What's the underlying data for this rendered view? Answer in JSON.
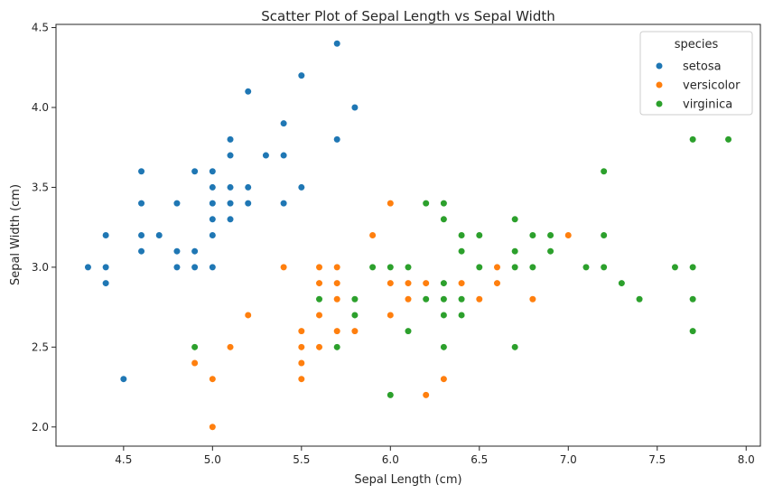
{
  "chart_data": {
    "type": "scatter",
    "title": "Scatter Plot of Sepal Length vs Sepal Width",
    "xlabel": "Sepal Length (cm)",
    "ylabel": "Sepal Width (cm)",
    "xlim": [
      4.12,
      8.08
    ],
    "ylim": [
      1.88,
      4.52
    ],
    "xticks": [
      4.5,
      5.0,
      5.5,
      6.0,
      6.5,
      7.0,
      7.5,
      8.0
    ],
    "xtick_labels": [
      "4.5",
      "5.0",
      "5.5",
      "6.0",
      "6.5",
      "7.0",
      "7.5",
      "8.0"
    ],
    "yticks": [
      2.0,
      2.5,
      3.0,
      3.5,
      4.0,
      4.5
    ],
    "ytick_labels": [
      "2.0",
      "2.5",
      "3.0",
      "3.5",
      "4.0",
      "4.5"
    ],
    "grid": false,
    "legend": {
      "title": "species",
      "placement": "top-right"
    },
    "series": [
      {
        "name": "setosa",
        "color": "#1f77b4",
        "x": [
          5.1,
          4.9,
          4.7,
          4.6,
          5.0,
          5.4,
          4.6,
          5.0,
          4.4,
          4.9,
          5.4,
          4.8,
          4.8,
          4.3,
          5.8,
          5.7,
          5.4,
          5.1,
          5.7,
          5.1,
          5.4,
          5.1,
          4.6,
          5.1,
          4.8,
          5.0,
          5.0,
          5.2,
          5.2,
          4.7,
          4.8,
          5.4,
          5.2,
          5.5,
          4.9,
          5.0,
          5.5,
          4.9,
          4.4,
          5.1,
          5.0,
          4.5,
          4.4,
          5.0,
          5.1,
          4.8,
          5.1,
          4.6,
          5.3,
          5.0
        ],
        "y": [
          3.5,
          3.0,
          3.2,
          3.1,
          3.6,
          3.9,
          3.4,
          3.4,
          2.9,
          3.1,
          3.7,
          3.4,
          3.0,
          3.0,
          4.0,
          4.4,
          3.9,
          3.5,
          3.8,
          3.8,
          3.4,
          3.7,
          3.6,
          3.3,
          3.4,
          3.0,
          3.4,
          3.5,
          3.4,
          3.2,
          3.1,
          3.4,
          4.1,
          4.2,
          3.1,
          3.2,
          3.5,
          3.6,
          3.0,
          3.4,
          3.5,
          2.3,
          3.2,
          3.5,
          3.8,
          3.0,
          3.8,
          3.2,
          3.7,
          3.3
        ]
      },
      {
        "name": "versicolor",
        "color": "#ff7f0e",
        "x": [
          7.0,
          6.4,
          6.9,
          5.5,
          6.5,
          5.7,
          6.3,
          4.9,
          6.6,
          5.2,
          5.0,
          5.9,
          6.0,
          6.1,
          5.6,
          6.7,
          5.6,
          5.8,
          6.2,
          5.6,
          5.9,
          6.1,
          6.3,
          6.1,
          6.4,
          6.6,
          6.8,
          6.7,
          6.0,
          5.7,
          5.5,
          5.5,
          5.8,
          6.0,
          5.4,
          6.0,
          6.7,
          6.3,
          5.6,
          5.5,
          5.5,
          6.1,
          5.8,
          5.0,
          5.6,
          5.7,
          5.7,
          6.2,
          5.1,
          5.7
        ],
        "y": [
          3.2,
          3.2,
          3.1,
          2.3,
          2.8,
          2.8,
          3.3,
          2.4,
          2.9,
          2.7,
          2.0,
          3.0,
          2.2,
          2.9,
          2.9,
          3.1,
          3.0,
          2.7,
          2.2,
          2.5,
          3.2,
          2.8,
          2.5,
          2.8,
          2.9,
          3.0,
          2.8,
          3.0,
          2.9,
          2.6,
          2.4,
          2.4,
          2.7,
          2.7,
          3.0,
          3.4,
          3.1,
          2.3,
          3.0,
          2.5,
          2.6,
          3.0,
          2.6,
          2.3,
          2.7,
          3.0,
          2.9,
          2.9,
          2.5,
          2.8
        ]
      },
      {
        "name": "virginica",
        "color": "#2ca02c",
        "x": [
          6.3,
          5.8,
          7.1,
          6.3,
          6.5,
          7.6,
          4.9,
          7.3,
          6.7,
          7.2,
          6.5,
          6.4,
          6.8,
          5.7,
          5.8,
          6.4,
          6.5,
          7.7,
          7.7,
          6.0,
          6.9,
          5.6,
          7.7,
          6.3,
          6.7,
          7.2,
          6.2,
          6.1,
          6.4,
          7.2,
          7.4,
          7.9,
          6.4,
          6.3,
          6.1,
          7.7,
          6.3,
          6.4,
          6.0,
          6.9,
          6.7,
          6.9,
          5.8,
          6.8,
          6.7,
          6.7,
          6.3,
          6.5,
          6.2,
          5.9
        ],
        "y": [
          3.3,
          2.7,
          3.0,
          2.9,
          3.0,
          3.0,
          2.5,
          2.9,
          2.5,
          3.6,
          3.2,
          2.7,
          3.0,
          2.5,
          2.8,
          3.2,
          3.0,
          3.8,
          2.6,
          2.2,
          3.2,
          2.8,
          2.8,
          2.7,
          3.3,
          3.2,
          2.8,
          3.0,
          2.8,
          3.0,
          2.8,
          3.8,
          2.8,
          2.8,
          2.6,
          3.0,
          3.4,
          3.1,
          3.0,
          3.1,
          3.1,
          3.1,
          2.7,
          3.2,
          3.3,
          3.0,
          2.5,
          3.0,
          3.4,
          3.0
        ]
      }
    ]
  }
}
